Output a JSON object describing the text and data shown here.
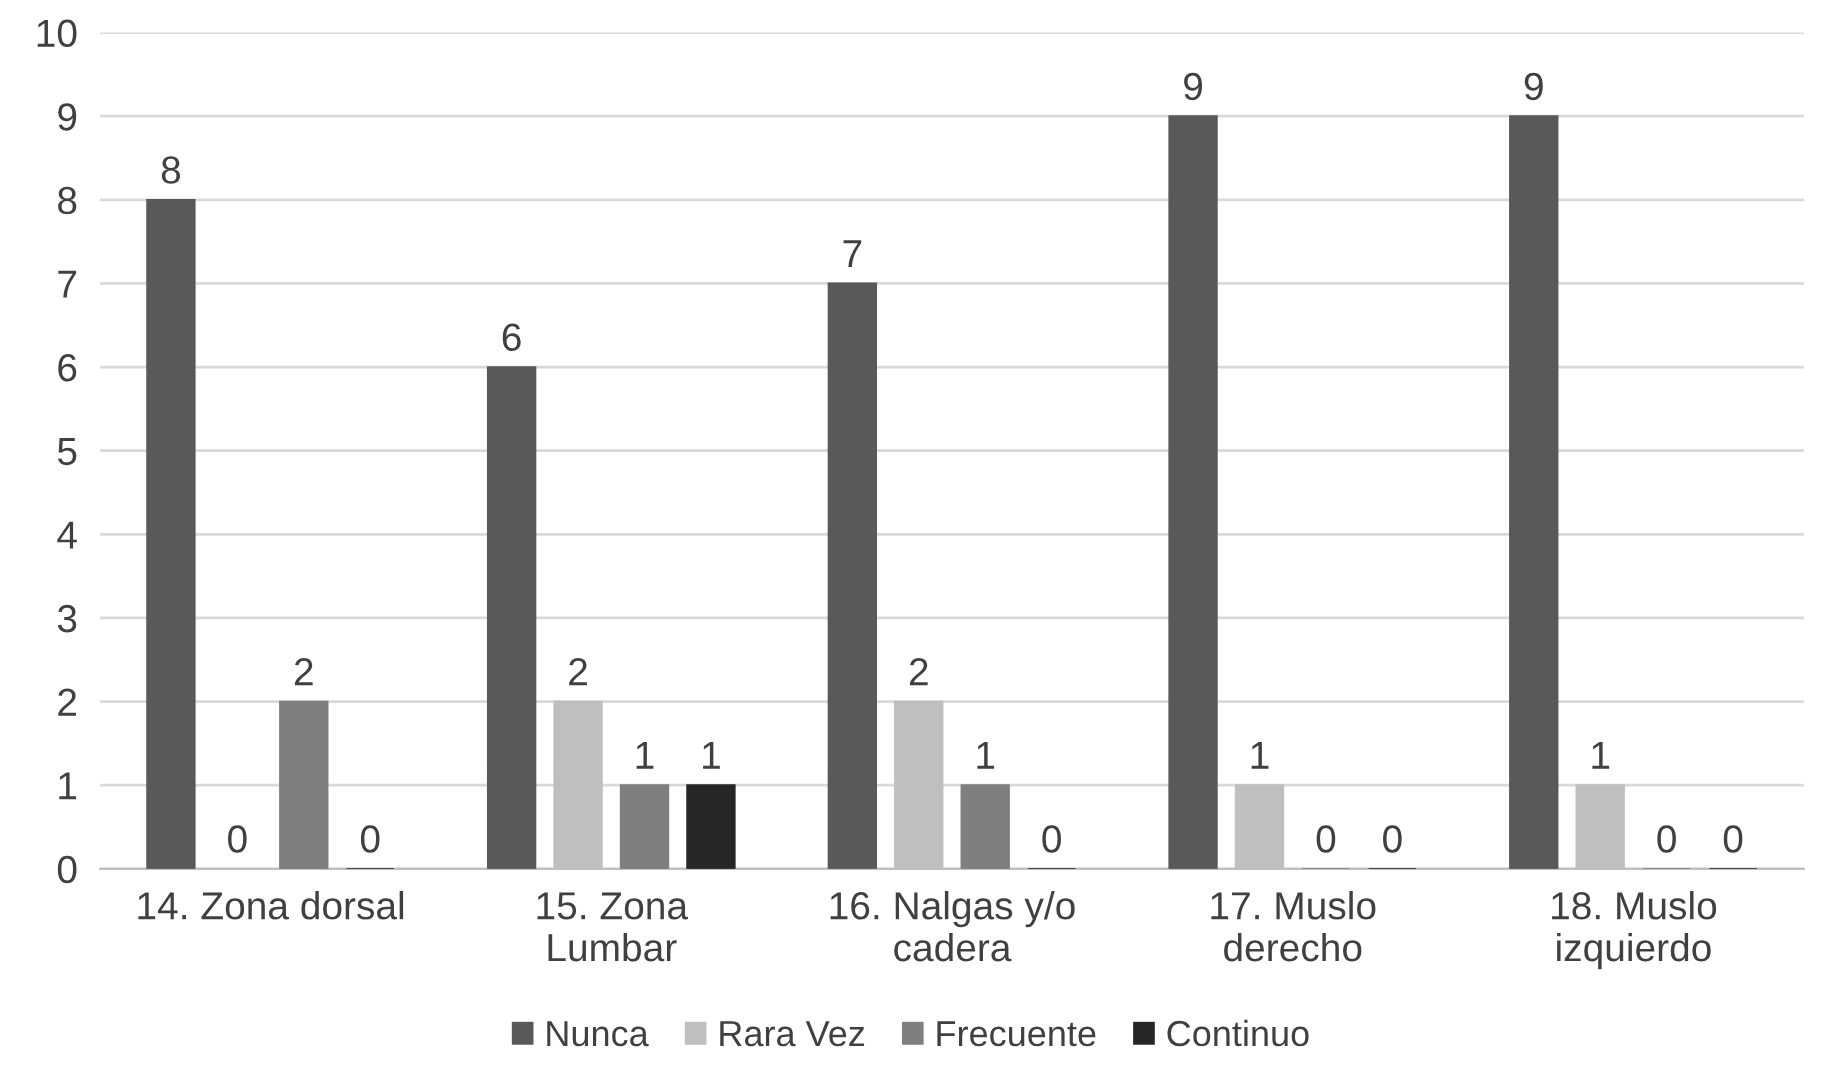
{
  "chart_data": {
    "type": "bar",
    "categories": [
      "14. Zona dorsal",
      "15. Zona\nLumbar",
      "16. Nalgas y/o\ncadera",
      "17. Muslo\nderecho",
      "18. Muslo\nizquierdo"
    ],
    "series": [
      {
        "name": "Nunca",
        "color": "#595959",
        "values": [
          8,
          6,
          7,
          9,
          9
        ]
      },
      {
        "name": "Rara Vez",
        "color": "#bfbfbf",
        "values": [
          0,
          2,
          2,
          1,
          1
        ]
      },
      {
        "name": "Frecuente",
        "color": "#7f7f7f",
        "values": [
          2,
          1,
          1,
          0,
          0
        ]
      },
      {
        "name": "Continuo",
        "color": "#262626",
        "values": [
          0,
          1,
          0,
          0,
          0
        ]
      }
    ],
    "ylim": [
      0,
      10
    ],
    "yticks": [
      0,
      1,
      2,
      3,
      4,
      5,
      6,
      7,
      8,
      9,
      10
    ],
    "grid": "y",
    "legend": "bottom",
    "data_labels": true
  }
}
